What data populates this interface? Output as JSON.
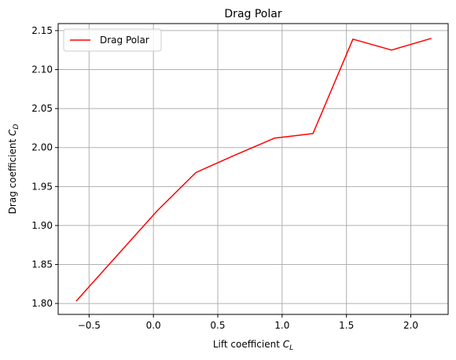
{
  "chart_data": {
    "type": "line",
    "title": "Drag Polar",
    "xlabel": "Lift coefficient",
    "xlabel_symbol": "C",
    "xlabel_sub": "L",
    "ylabel": "Drag coefficient",
    "ylabel_symbol": "C",
    "ylabel_sub": "D",
    "xlim": [
      -0.74,
      2.29
    ],
    "ylim": [
      1.786,
      2.159
    ],
    "xticks": [
      -0.5,
      0.0,
      0.5,
      1.0,
      1.5,
      2.0
    ],
    "xtick_labels": [
      "−0.5",
      "0.0",
      "0.5",
      "1.0",
      "1.5",
      "2.0"
    ],
    "yticks": [
      1.8,
      1.85,
      1.9,
      1.95,
      2.0,
      2.05,
      2.1,
      2.15
    ],
    "ytick_labels": [
      "1.80",
      "1.85",
      "1.90",
      "1.95",
      "2.00",
      "2.05",
      "2.10",
      "2.15"
    ],
    "grid": true,
    "legend_position": "top-left",
    "series": [
      {
        "name": "Drag Polar",
        "color": "#ff0000",
        "x": [
          -0.6,
          0.03,
          0.33,
          0.63,
          0.94,
          1.24,
          1.55,
          1.85,
          2.16
        ],
        "y": [
          1.803,
          1.919,
          1.968,
          1.99,
          2.012,
          2.018,
          2.139,
          2.125,
          2.14
        ]
      }
    ]
  }
}
